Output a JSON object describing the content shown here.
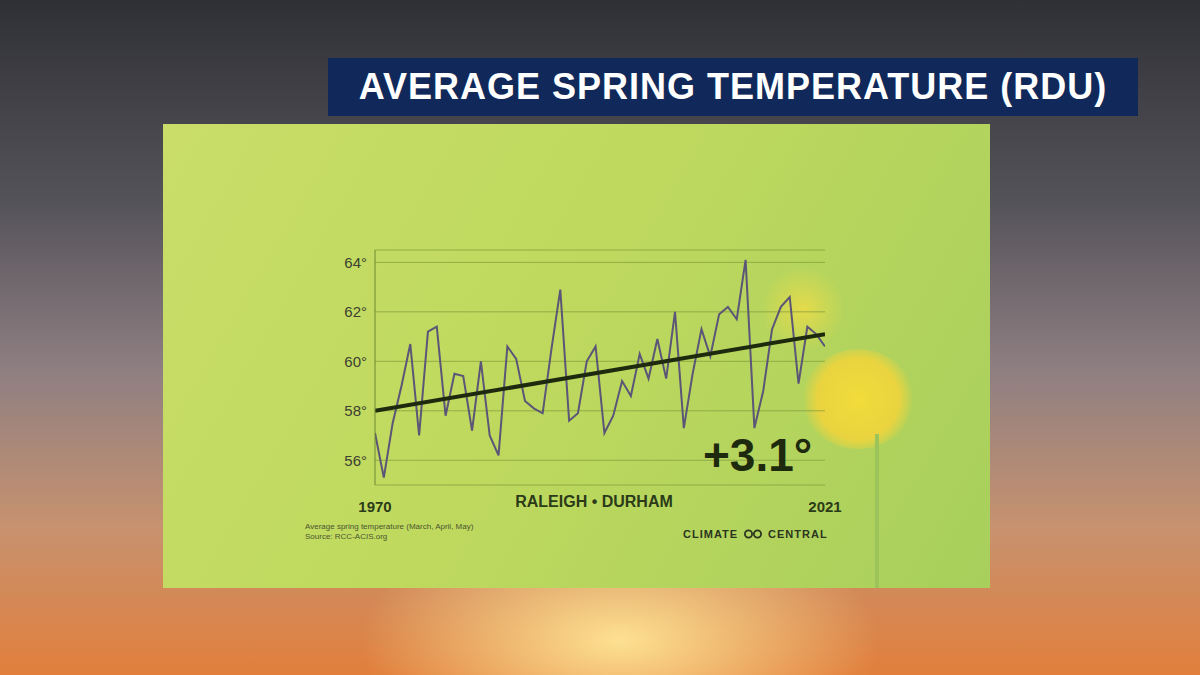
{
  "chart_data": {
    "type": "line",
    "title": "AVERAGE SPRING TEMPERATURE (RDU)",
    "x": [
      1970,
      1971,
      1972,
      1973,
      1974,
      1975,
      1976,
      1977,
      1978,
      1979,
      1980,
      1981,
      1982,
      1983,
      1984,
      1985,
      1986,
      1987,
      1988,
      1989,
      1990,
      1991,
      1992,
      1993,
      1994,
      1995,
      1996,
      1997,
      1998,
      1999,
      2000,
      2001,
      2002,
      2003,
      2004,
      2005,
      2006,
      2007,
      2008,
      2009,
      2010,
      2011,
      2012,
      2013,
      2014,
      2015,
      2016,
      2017,
      2018,
      2019,
      2020,
      2021
    ],
    "values": [
      57.1,
      55.3,
      57.5,
      59.0,
      60.7,
      57.0,
      61.2,
      61.4,
      57.8,
      59.5,
      59.4,
      57.2,
      60.0,
      57.0,
      56.2,
      60.6,
      60.1,
      58.4,
      58.1,
      57.9,
      60.5,
      62.9,
      57.6,
      57.9,
      60.0,
      60.6,
      57.1,
      57.8,
      59.2,
      58.6,
      60.3,
      59.3,
      60.9,
      59.3,
      62.0,
      57.3,
      59.5,
      61.3,
      60.2,
      61.9,
      62.2,
      61.7,
      64.1,
      57.3,
      58.8,
      61.3,
      62.2,
      62.6,
      59.1,
      61.4,
      61.1,
      60.6
    ],
    "color": "#5b5577",
    "trend": {
      "x": [
        1970,
        2021
      ],
      "values": [
        58.0,
        61.1
      ],
      "color": "#1e2a0e"
    },
    "xlim": [
      1970,
      2021
    ],
    "xticks": [
      1970,
      2021
    ],
    "ylim": [
      55,
      64.5
    ],
    "yticks": [
      {
        "value": 56,
        "label": "56°"
      },
      {
        "value": 58,
        "label": "58°"
      },
      {
        "value": 60,
        "label": "60°"
      },
      {
        "value": 62,
        "label": "62°"
      },
      {
        "value": 64,
        "label": "64°"
      }
    ],
    "grid": true,
    "annotation": "+3.1°",
    "location": "RALEIGH • DURHAM",
    "note": "Average spring temperature (March, April, May)",
    "source": "Source: RCC-ACIS.org",
    "logo": [
      "CLIMATE",
      "CENTRAL"
    ]
  }
}
